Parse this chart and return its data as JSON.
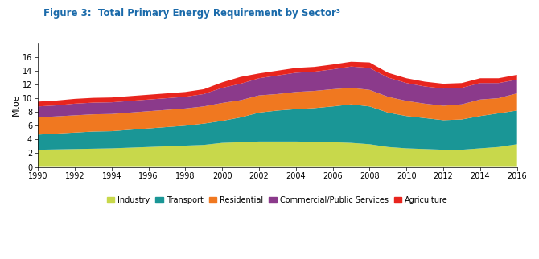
{
  "title": "Figure 3:  Total Primary Energy Requirement by Sector³",
  "ylabel": "Mtoe",
  "years": [
    1990,
    1991,
    1992,
    1993,
    1994,
    1995,
    1996,
    1997,
    1998,
    1999,
    2000,
    2001,
    2002,
    2003,
    2004,
    2005,
    2006,
    2007,
    2008,
    2009,
    2010,
    2011,
    2012,
    2013,
    2014,
    2015,
    2016
  ],
  "industry": [
    2.5,
    2.55,
    2.6,
    2.65,
    2.7,
    2.8,
    2.9,
    3.0,
    3.1,
    3.2,
    3.5,
    3.6,
    3.7,
    3.7,
    3.7,
    3.65,
    3.6,
    3.5,
    3.3,
    2.9,
    2.7,
    2.6,
    2.5,
    2.5,
    2.7,
    2.9,
    3.3
  ],
  "transport": [
    2.2,
    2.3,
    2.4,
    2.5,
    2.5,
    2.6,
    2.7,
    2.8,
    2.9,
    3.1,
    3.2,
    3.6,
    4.2,
    4.5,
    4.7,
    4.9,
    5.2,
    5.6,
    5.5,
    5.0,
    4.7,
    4.5,
    4.3,
    4.4,
    4.7,
    4.9,
    4.9
  ],
  "residential": [
    2.5,
    2.5,
    2.5,
    2.5,
    2.5,
    2.5,
    2.5,
    2.5,
    2.5,
    2.5,
    2.6,
    2.5,
    2.5,
    2.4,
    2.5,
    2.5,
    2.5,
    2.4,
    2.4,
    2.3,
    2.2,
    2.1,
    2.1,
    2.2,
    2.4,
    2.2,
    2.5
  ],
  "commercial": [
    1.6,
    1.6,
    1.7,
    1.7,
    1.7,
    1.7,
    1.7,
    1.7,
    1.7,
    1.8,
    2.2,
    2.4,
    2.5,
    2.7,
    2.8,
    2.8,
    2.9,
    3.1,
    3.2,
    2.8,
    2.6,
    2.5,
    2.5,
    2.4,
    2.4,
    2.2,
    2.0
  ],
  "agriculture": [
    0.7,
    0.7,
    0.7,
    0.7,
    0.7,
    0.7,
    0.7,
    0.7,
    0.7,
    0.7,
    0.8,
    1.0,
    0.7,
    0.7,
    0.7,
    0.7,
    0.7,
    0.7,
    0.8,
    0.7,
    0.7,
    0.7,
    0.7,
    0.7,
    0.7,
    0.7,
    0.7
  ],
  "colors": {
    "industry": "#c8d84b",
    "transport": "#1a9696",
    "residential": "#f07820",
    "commercial": "#8b3a8b",
    "agriculture": "#e8251e"
  },
  "ylim": [
    0,
    18
  ],
  "yticks": [
    0,
    2,
    4,
    6,
    8,
    10,
    12,
    14,
    16
  ],
  "xticks": [
    1990,
    1992,
    1994,
    1996,
    1998,
    2000,
    2002,
    2004,
    2006,
    2008,
    2010,
    2012,
    2014,
    2016
  ],
  "title_color": "#1a6aaa",
  "title_fontsize": 8.5,
  "legend_labels": [
    "Industry",
    "Transport",
    "Residential",
    "Commercial/Public Services",
    "Agriculture"
  ],
  "bg_color": "#ffffff"
}
